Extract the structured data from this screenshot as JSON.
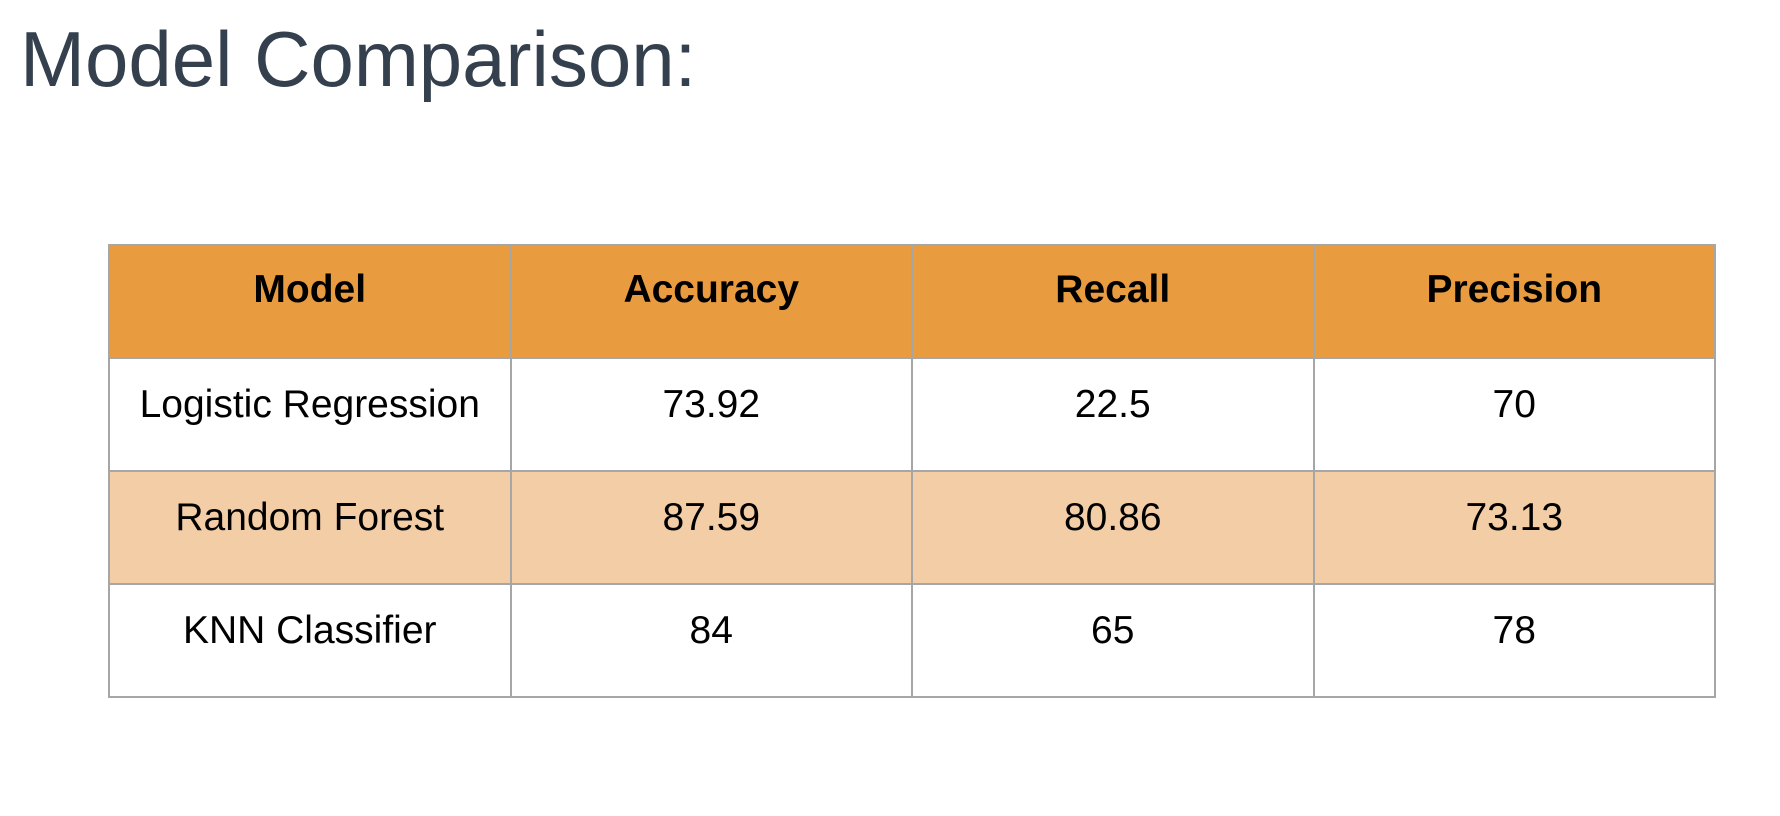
{
  "title": "Model Comparison:",
  "colors": {
    "header_bg": "#e99b40",
    "band_bg": "#f3cda5",
    "row_bg": "#ffffff",
    "title_text": "#34404d",
    "grid": "#a6a6a6"
  },
  "table": {
    "columns": [
      "Model",
      "Accuracy",
      "Recall",
      "Precision"
    ],
    "rows": [
      {
        "cells": [
          "Logistic Regression",
          "73.92",
          "22.5",
          "70"
        ],
        "banded": false
      },
      {
        "cells": [
          "Random Forest",
          "87.59",
          "80.86",
          "73.13"
        ],
        "banded": true
      },
      {
        "cells": [
          "KNN Classifier",
          "84",
          "65",
          "78"
        ],
        "banded": false
      }
    ]
  }
}
